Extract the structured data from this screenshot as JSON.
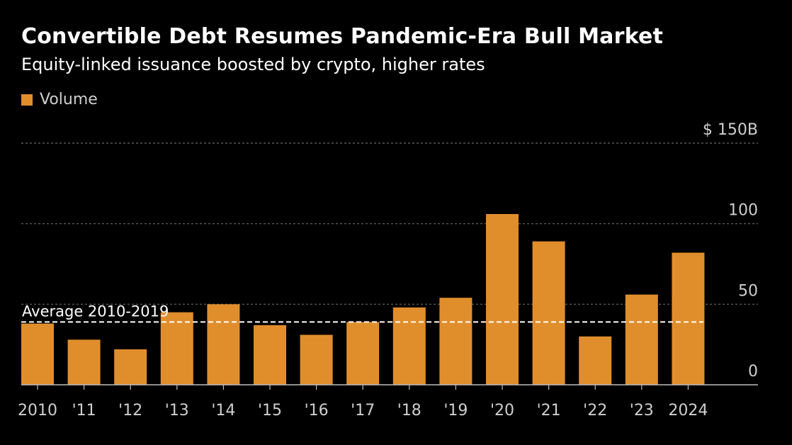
{
  "title": "Convertible Debt Resumes Pandemic-Era Bull Market",
  "subtitle": "Equity-linked issuance boosted by crypto, higher rates",
  "legend": {
    "label": "Volume"
  },
  "colors": {
    "bar": "#E08E2C",
    "background": "#000000",
    "grid": "#6a6a6a",
    "text": "#cfcfcf",
    "average_line": "#ffffff"
  },
  "chart_data": {
    "type": "bar",
    "title": "Convertible Debt Resumes Pandemic-Era Bull Market",
    "subtitle": "Equity-linked issuance boosted by crypto, higher rates",
    "categories": [
      "2010",
      "'11",
      "'12",
      "'13",
      "'14",
      "'15",
      "'16",
      "'17",
      "'18",
      "'19",
      "'20",
      "'21",
      "'22",
      "'23",
      "2024"
    ],
    "series": [
      {
        "name": "Volume",
        "values": [
          38,
          28,
          22,
          45,
          50,
          37,
          31,
          39,
          48,
          54,
          106,
          89,
          30,
          56,
          82
        ]
      }
    ],
    "ylim": [
      0,
      150
    ],
    "yticks": [
      {
        "value": 0,
        "label": "0"
      },
      {
        "value": 50,
        "label": "50"
      },
      {
        "value": 100,
        "label": "100"
      },
      {
        "value": 150,
        "label": "$ 150B"
      }
    ],
    "grid": true,
    "annotations": [
      {
        "type": "hline",
        "value": 39,
        "label": "Average 2010-2019"
      }
    ],
    "legend_position": "top-left"
  }
}
